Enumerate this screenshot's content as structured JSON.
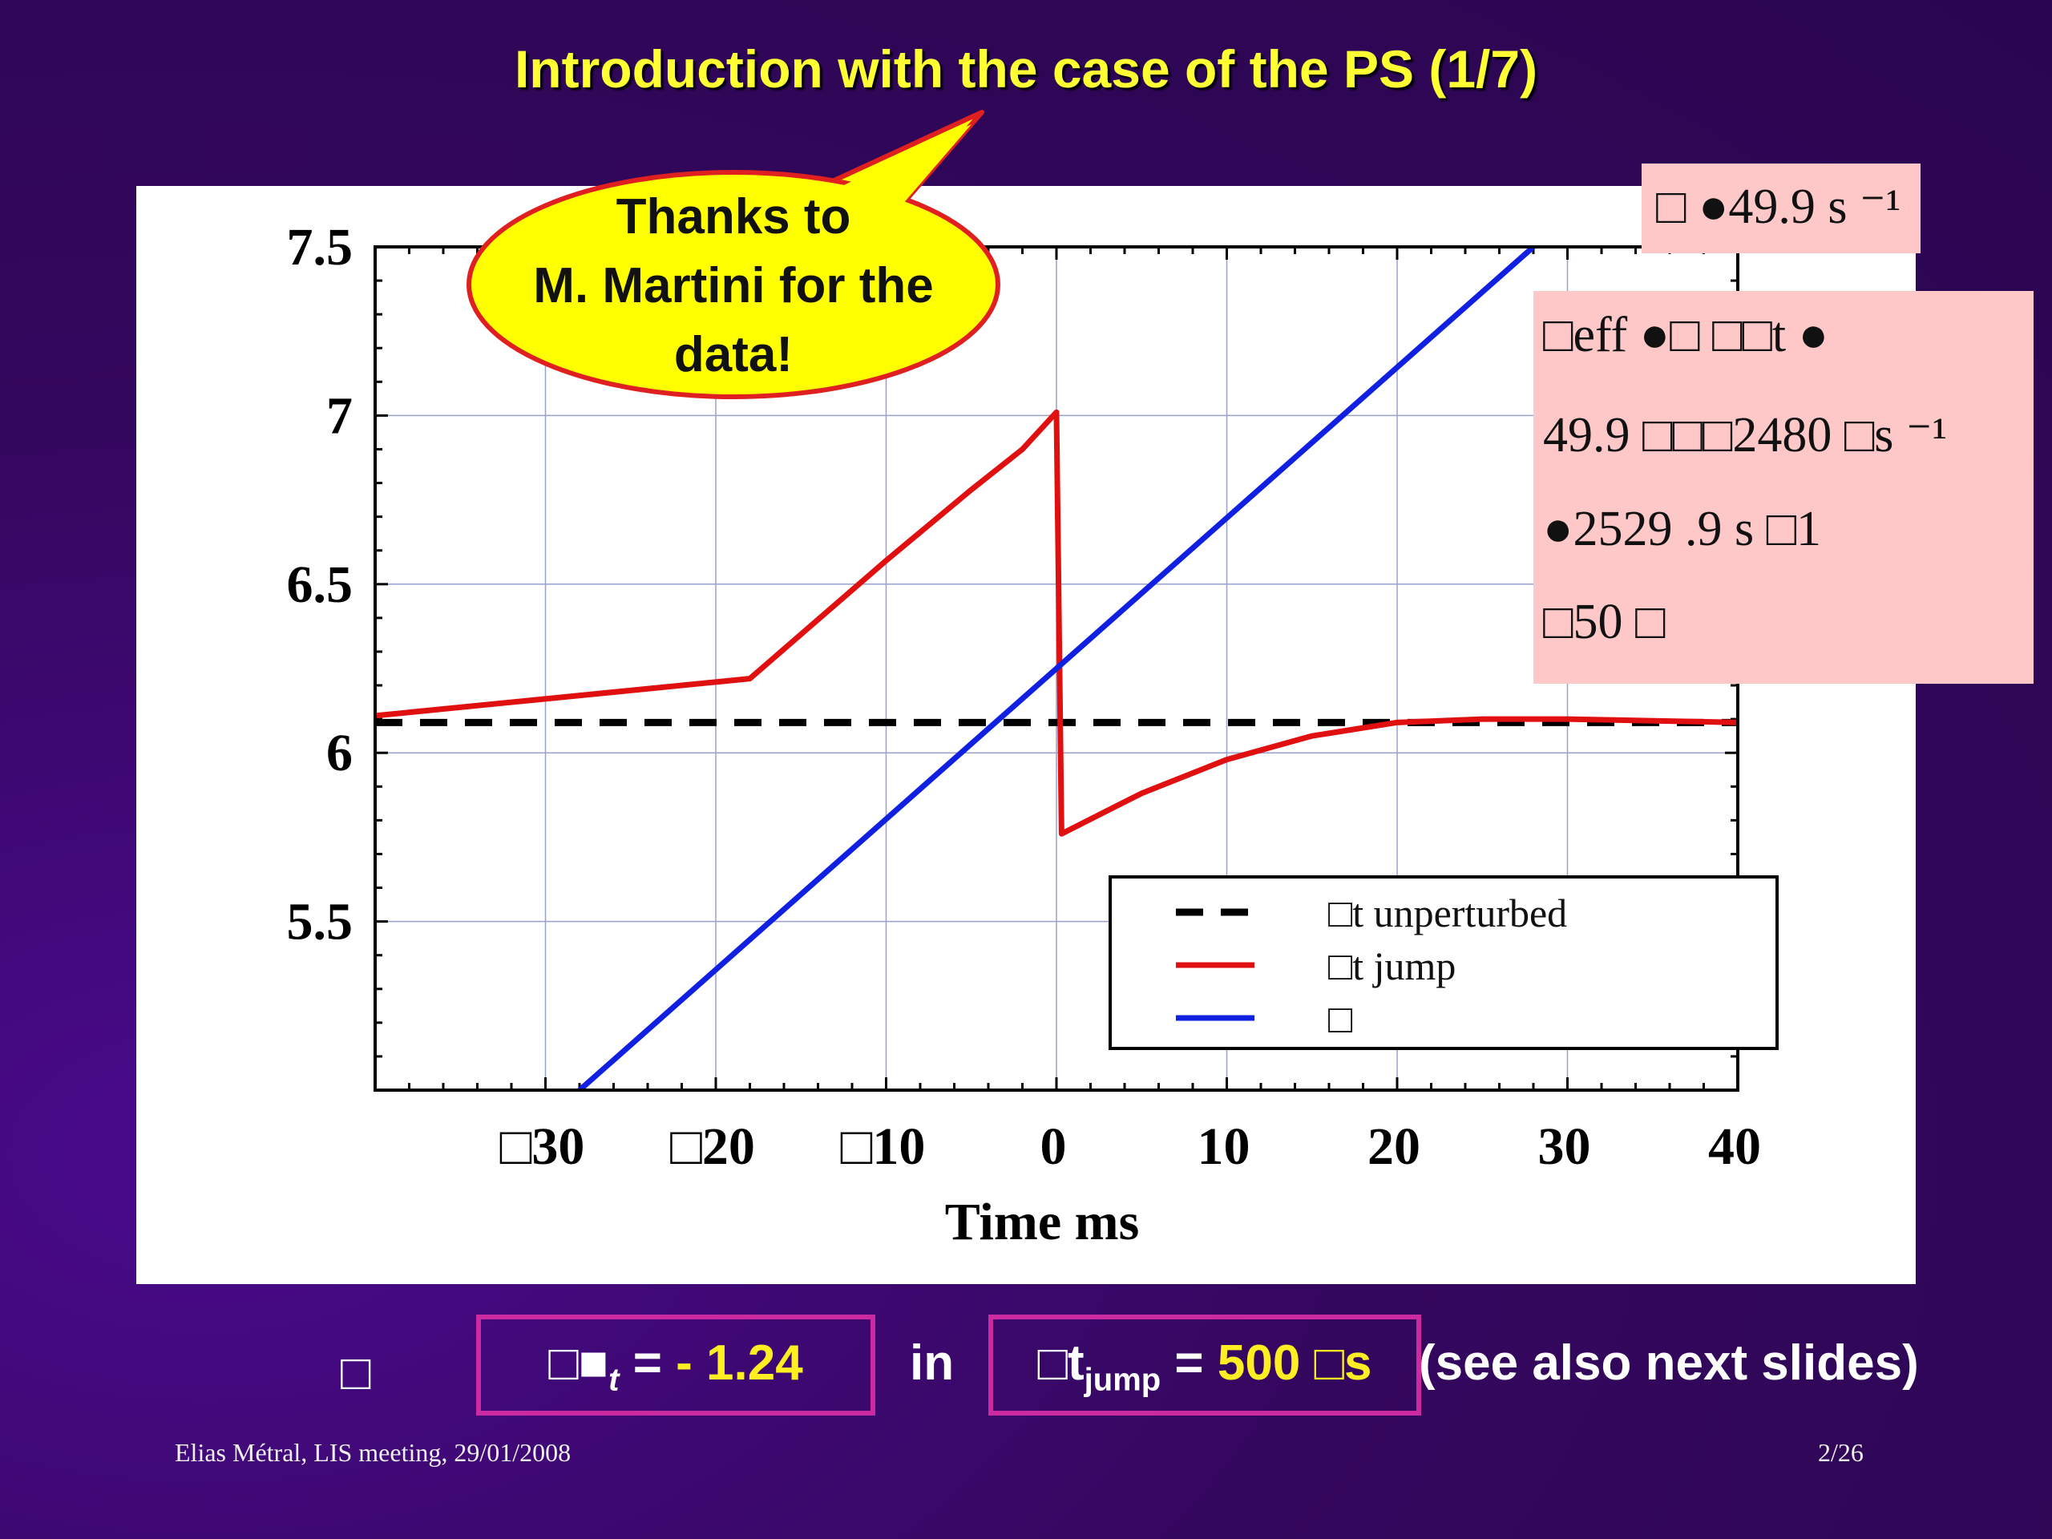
{
  "slide": {
    "title": "Introduction with the case of the PS (1/7)",
    "callout": [
      "Thanks to",
      "M. Martini for the",
      "data!"
    ],
    "info_box_1": "□ ●49.9 s ⁻¹",
    "info_box_2": [
      "□eff  ●□ □□t  ●",
      "49.9  □□□2480  □s ⁻¹",
      " ●2529 .9 s  □1",
      "□50 □"
    ],
    "bottom": {
      "bullet": "□",
      "box1_prefix": "□",
      "box1_symbol": "■",
      "box1_sub": "t",
      "box1_eq": " = ",
      "box1_value": "- 1.24",
      "in_text": "in",
      "box2_prefix": "□t",
      "box2_sub": "jump",
      "box2_eq": " = ",
      "box2_value": "500 □s",
      "note": "(see also next slides)"
    },
    "footer_left": "Elias Métral, LIS meeting, 29/01/2008",
    "footer_right": "2/26"
  },
  "colors": {
    "title": "#ffff33",
    "unperturbed": "#000000",
    "jump": "#e01010",
    "third": "#1020e0",
    "box_border": "#cc2aa0",
    "pink": "#ffc8c8"
  },
  "chart_data": {
    "type": "line",
    "xlabel": "Time   ms",
    "xlim": [
      -40,
      40
    ],
    "ylim": [
      5,
      7.5
    ],
    "x_ticks": [
      {
        "v": -30,
        "label": "□30"
      },
      {
        "v": -20,
        "label": "□20"
      },
      {
        "v": -10,
        "label": "□10"
      },
      {
        "v": 0,
        "label": "0"
      },
      {
        "v": 10,
        "label": "10"
      },
      {
        "v": 20,
        "label": "20"
      },
      {
        "v": 30,
        "label": "30"
      },
      {
        "v": 40,
        "label": "40"
      }
    ],
    "y_ticks": [
      {
        "v": 5.5,
        "label": "5.5"
      },
      {
        "v": 6,
        "label": "6"
      },
      {
        "v": 6.5,
        "label": "6.5"
      },
      {
        "v": 7,
        "label": "7"
      },
      {
        "v": 7.5,
        "label": "7.5"
      }
    ],
    "grid": true,
    "legend_position": "bottom-right",
    "series": [
      {
        "name": "□t unperturbed",
        "style": "dashed",
        "x": [
          -40,
          40
        ],
        "y": [
          6.09,
          6.09
        ]
      },
      {
        "name": "□t jump",
        "style": "solid",
        "x": [
          -40,
          -30,
          -20,
          -18,
          -10,
          -5,
          -2,
          0,
          0.3,
          5,
          10,
          15,
          20,
          25,
          30,
          40
        ],
        "y": [
          6.11,
          6.16,
          6.21,
          6.22,
          6.57,
          6.78,
          6.9,
          7.01,
          5.76,
          5.88,
          5.98,
          6.05,
          6.09,
          6.1,
          6.1,
          6.09
        ]
      },
      {
        "name": "□",
        "style": "solid",
        "x": [
          -28,
          28
        ],
        "y": [
          5,
          7.5
        ]
      }
    ]
  }
}
